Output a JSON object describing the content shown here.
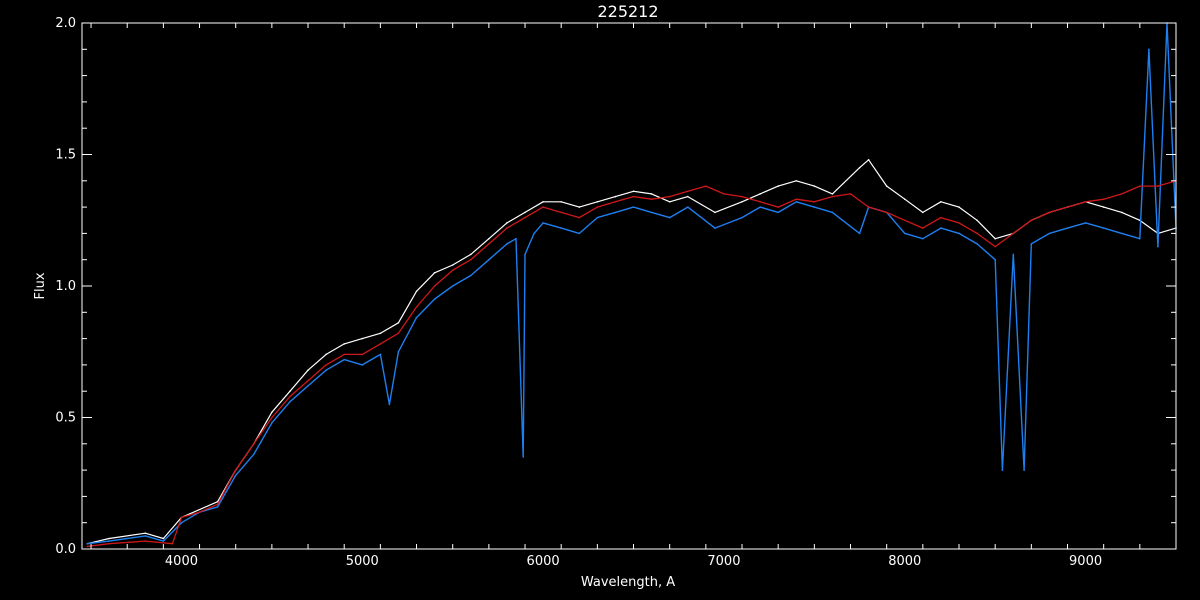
{
  "chart_data": {
    "type": "line",
    "title": "225212",
    "xlabel": "Wavelength, A",
    "ylabel": "Flux",
    "xlim": [
      3450,
      9500
    ],
    "ylim": [
      0.0,
      2.0
    ],
    "xticks": [
      4000,
      5000,
      6000,
      7000,
      8000,
      9000
    ],
    "xtick_labels": [
      "4000",
      "5000",
      "6000",
      "7000",
      "8000",
      "9000"
    ],
    "yticks": [
      0.0,
      0.5,
      1.0,
      1.5,
      2.0
    ],
    "ytick_labels": [
      "0.0",
      "0.5",
      "1.0",
      "1.5",
      "2.0"
    ],
    "grid": false,
    "colors": {
      "background": "#000000",
      "axes": "#ffffff",
      "white_series": "#ffffff",
      "blue_series": "#1e7ff0",
      "red_series": "#d01818"
    },
    "series": [
      {
        "style": "white",
        "x": [
          3480,
          3600,
          3800,
          3900,
          4000,
          4200,
          4300,
          4400,
          4500,
          4600,
          4700,
          4800,
          4900,
          5000,
          5100,
          5200,
          5300,
          5400,
          5500,
          5600,
          5700,
          5800,
          5900,
          6000,
          6100,
          6200,
          6300,
          6400,
          6500,
          6600,
          6700,
          6800,
          6950,
          7100,
          7200,
          7300,
          7400,
          7500,
          7600,
          7750,
          7800,
          7900,
          8000,
          8100,
          8200,
          8300,
          8400,
          8500,
          8600,
          8700,
          8800,
          8900,
          9000,
          9100,
          9200,
          9300,
          9400,
          9500
        ],
        "y": [
          0.02,
          0.04,
          0.06,
          0.04,
          0.12,
          0.18,
          0.3,
          0.4,
          0.52,
          0.6,
          0.68,
          0.74,
          0.78,
          0.8,
          0.82,
          0.86,
          0.98,
          1.05,
          1.08,
          1.12,
          1.18,
          1.24,
          1.28,
          1.32,
          1.32,
          1.3,
          1.32,
          1.34,
          1.36,
          1.35,
          1.32,
          1.34,
          1.28,
          1.32,
          1.35,
          1.38,
          1.4,
          1.38,
          1.35,
          1.45,
          1.48,
          1.38,
          1.33,
          1.28,
          1.32,
          1.3,
          1.25,
          1.18,
          1.2,
          1.25,
          1.28,
          1.3,
          1.32,
          1.3,
          1.28,
          1.25,
          1.2,
          1.22
        ]
      },
      {
        "style": "blue",
        "x": [
          3480,
          3600,
          3800,
          3900,
          4000,
          4100,
          4200,
          4300,
          4400,
          4500,
          4600,
          4700,
          4800,
          4900,
          5000,
          5100,
          5150,
          5200,
          5300,
          5400,
          5500,
          5600,
          5700,
          5800,
          5850,
          5890,
          5900,
          5950,
          6000,
          6100,
          6200,
          6300,
          6400,
          6500,
          6600,
          6700,
          6800,
          6950,
          7100,
          7200,
          7300,
          7400,
          7500,
          7600,
          7750,
          7800,
          7900,
          8000,
          8100,
          8200,
          8300,
          8400,
          8500,
          8540,
          8600,
          8660,
          8700,
          8800,
          8900,
          9000,
          9100,
          9200,
          9300,
          9350,
          9400,
          9450,
          9500
        ],
        "y": [
          0.02,
          0.03,
          0.05,
          0.03,
          0.1,
          0.14,
          0.16,
          0.28,
          0.36,
          0.48,
          0.56,
          0.62,
          0.68,
          0.72,
          0.7,
          0.74,
          0.55,
          0.75,
          0.88,
          0.95,
          1.0,
          1.04,
          1.1,
          1.16,
          1.18,
          0.35,
          1.12,
          1.2,
          1.24,
          1.22,
          1.2,
          1.26,
          1.28,
          1.3,
          1.28,
          1.26,
          1.3,
          1.22,
          1.26,
          1.3,
          1.28,
          1.32,
          1.3,
          1.28,
          1.2,
          1.3,
          1.28,
          1.2,
          1.18,
          1.22,
          1.2,
          1.16,
          1.1,
          0.3,
          1.12,
          0.3,
          1.16,
          1.2,
          1.22,
          1.24,
          1.22,
          1.2,
          1.18,
          1.9,
          1.15,
          2.0,
          1.22
        ]
      },
      {
        "style": "red",
        "x": [
          3480,
          3600,
          3800,
          3950,
          4000,
          4100,
          4200,
          4300,
          4400,
          4500,
          4600,
          4700,
          4800,
          4900,
          5000,
          5100,
          5200,
          5300,
          5400,
          5500,
          5600,
          5700,
          5800,
          5900,
          6000,
          6100,
          6200,
          6300,
          6400,
          6500,
          6600,
          6700,
          6800,
          6900,
          7000,
          7100,
          7200,
          7300,
          7400,
          7500,
          7600,
          7700,
          7800,
          7900,
          8000,
          8100,
          8200,
          8300,
          8400,
          8500,
          8600,
          8700,
          8800,
          8900,
          9000,
          9100,
          9200,
          9300,
          9400,
          9500
        ],
        "y": [
          0.01,
          0.02,
          0.03,
          0.02,
          0.12,
          0.14,
          0.17,
          0.3,
          0.4,
          0.5,
          0.58,
          0.64,
          0.7,
          0.74,
          0.74,
          0.78,
          0.82,
          0.92,
          1.0,
          1.06,
          1.1,
          1.16,
          1.22,
          1.26,
          1.3,
          1.28,
          1.26,
          1.3,
          1.32,
          1.34,
          1.33,
          1.34,
          1.36,
          1.38,
          1.35,
          1.34,
          1.32,
          1.3,
          1.33,
          1.32,
          1.34,
          1.35,
          1.3,
          1.28,
          1.25,
          1.22,
          1.26,
          1.24,
          1.2,
          1.15,
          1.2,
          1.25,
          1.28,
          1.3,
          1.32,
          1.33,
          1.35,
          1.38,
          1.38,
          1.4
        ]
      }
    ]
  }
}
